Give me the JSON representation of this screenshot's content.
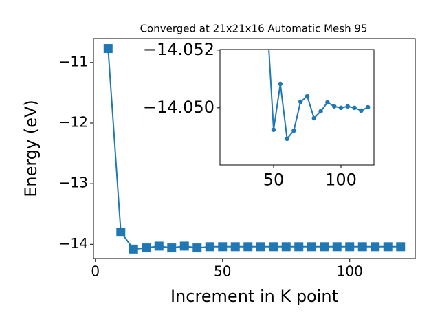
{
  "chart_data": [
    {
      "type": "line",
      "title": "Converged at 21x21x16 Automatic Mesh 95",
      "x_label": "Increment in K point",
      "y_label": "Energy (eV)",
      "x": [
        5,
        10,
        15,
        20,
        25,
        30,
        35,
        40,
        45,
        50,
        55,
        60,
        65,
        70,
        75,
        80,
        85,
        90,
        95,
        100,
        105,
        110,
        115,
        120
      ],
      "series": [
        {
          "color": "#1f77b4",
          "marker": "square",
          "values": [
            -10.77,
            -13.8,
            -14.08,
            -14.06,
            -14.03,
            -14.06,
            -14.03,
            -14.06,
            -14.04,
            -14.04,
            -14.04,
            -14.04,
            -14.04,
            -14.04,
            -14.04,
            -14.04,
            -14.04,
            -14.04,
            -14.04,
            -14.04,
            -14.04,
            -14.04,
            -14.04,
            -14.04
          ]
        }
      ],
      "xlim": [
        -0.75,
        125.75
      ],
      "xticks": [
        0,
        50,
        100
      ],
      "ylim": [
        -14.235,
        -10.605
      ],
      "yticks": [
        {
          "value": -14,
          "label": "−14"
        },
        {
          "value": -13,
          "label": "−13"
        },
        {
          "value": -12,
          "label": "−12"
        },
        {
          "value": -11,
          "label": "−11"
        }
      ]
    },
    {
      "type": "line",
      "x": [
        45,
        50,
        55,
        60,
        65,
        70,
        75,
        80,
        85,
        90,
        95,
        100,
        105,
        110,
        115,
        120
      ],
      "series": [
        {
          "color": "#1f77b4",
          "marker": "circle",
          "values": [
            -14.05321,
            -14.04924,
            -14.05083,
            -14.04893,
            -14.04921,
            -14.05021,
            -14.0504,
            -14.04964,
            -14.04988,
            -14.05019,
            -14.05005,
            -14.05,
            -14.05005,
            -14.05,
            -14.0499,
            -14.05002
          ]
        }
      ],
      "xlim": [
        10.2,
        124.5
      ],
      "xticks": [
        50,
        100
      ],
      "ylim": [
        -14.04802,
        -14.05202
      ],
      "yticks": [
        {
          "value": -14.052,
          "label": "−14.052"
        },
        {
          "value": -14.05,
          "label": "−14.050"
        }
      ]
    }
  ]
}
